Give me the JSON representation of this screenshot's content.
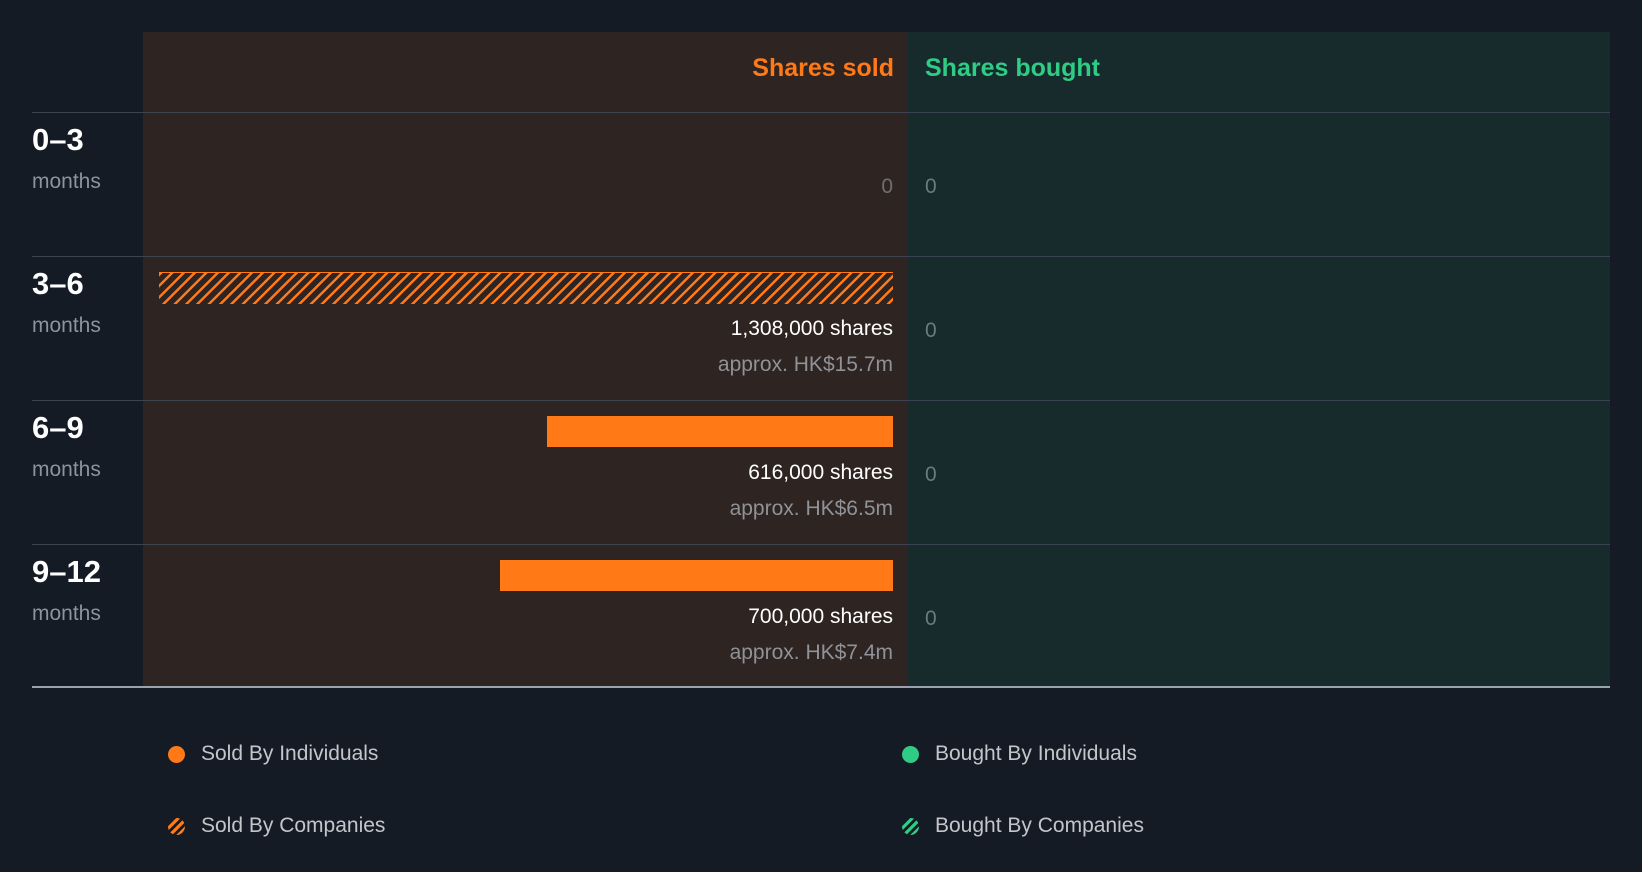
{
  "chart_data": {
    "type": "bar",
    "headers": {
      "sold": "Shares sold",
      "bought": "Shares bought"
    },
    "categories": [
      "0–3",
      "3–6",
      "6–9",
      "9–12"
    ],
    "category_unit": "months",
    "series": [
      {
        "name": "Shares sold",
        "values": [
          0,
          1308000,
          616000,
          700000
        ],
        "pattern": [
          "none",
          "hatched",
          "solid",
          "solid"
        ],
        "labels": [
          "0",
          "1,308,000 shares",
          "616,000 shares",
          "700,000 shares"
        ],
        "value_labels": [
          "",
          "approx. HK$15.7m",
          "approx. HK$6.5m",
          "approx. HK$7.4m"
        ]
      },
      {
        "name": "Shares bought",
        "values": [
          0,
          0,
          0,
          0
        ],
        "labels": [
          "0",
          "0",
          "0",
          "0"
        ]
      }
    ],
    "legend": [
      {
        "label": "Sold By Individuals",
        "color": "#ff7917",
        "style": "solid"
      },
      {
        "label": "Bought By Individuals",
        "color": "#2ecc85",
        "style": "solid"
      },
      {
        "label": "Sold By Companies",
        "color": "#ff7917",
        "style": "hatched"
      },
      {
        "label": "Bought By Companies",
        "color": "#2ecc85",
        "style": "hatched"
      }
    ],
    "colors": {
      "sold": "#ff7917",
      "bought": "#2ecc85",
      "background": "#151b24"
    }
  }
}
